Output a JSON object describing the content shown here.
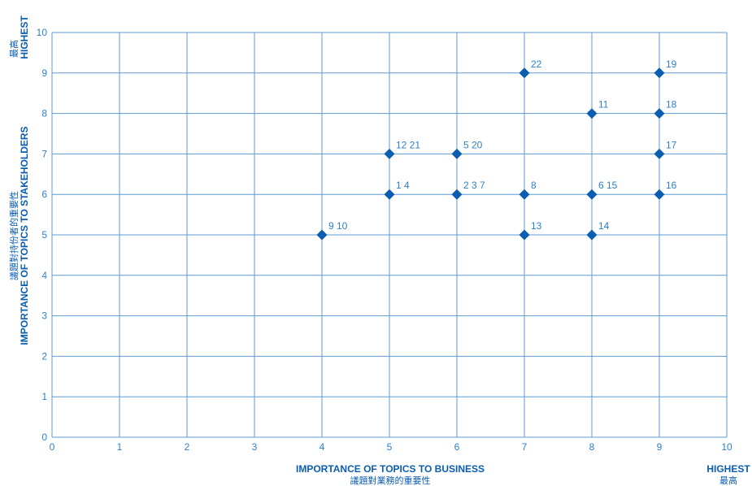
{
  "chart_data": {
    "type": "scatter",
    "x_axis": {
      "label": "IMPORTANCE OF TOPICS TO BUSINESS",
      "label_cjk": "議題對業務的重要性",
      "range": [
        0,
        10
      ],
      "ticks": [
        "0",
        "1",
        "2",
        "3",
        "4",
        "5",
        "6",
        "7",
        "8",
        "9",
        "10"
      ],
      "end_label": "HIGHEST",
      "end_label_cjk": "最高"
    },
    "y_axis": {
      "label": "IMPORTANCE OF TOPICS TO STAKEHOLDERS",
      "label_cjk": "議題對持份者的重要性",
      "range": [
        0,
        10
      ],
      "ticks": [
        "0",
        "1",
        "2",
        "3",
        "4",
        "5",
        "6",
        "7",
        "8",
        "9",
        "10"
      ],
      "end_label": "HIGHEST",
      "end_label_cjk": "最高"
    },
    "grid": true,
    "colors": {
      "marker": "#0a5db1",
      "grid": "#5c9bd6",
      "text": "#2f80c9",
      "title": "#0a5db1"
    },
    "points": [
      {
        "x": 4,
        "y": 5,
        "label": "9 10"
      },
      {
        "x": 5,
        "y": 6,
        "label": "1 4"
      },
      {
        "x": 5,
        "y": 7,
        "label": "12 21"
      },
      {
        "x": 6,
        "y": 6,
        "label": "2 3 7"
      },
      {
        "x": 6,
        "y": 7,
        "label": "5 20"
      },
      {
        "x": 7,
        "y": 5,
        "label": "13"
      },
      {
        "x": 7,
        "y": 6,
        "label": "8"
      },
      {
        "x": 7,
        "y": 9,
        "label": "22"
      },
      {
        "x": 8,
        "y": 5,
        "label": "14"
      },
      {
        "x": 8,
        "y": 6,
        "label": "6 15"
      },
      {
        "x": 8,
        "y": 8,
        "label": "11"
      },
      {
        "x": 9,
        "y": 6,
        "label": "16"
      },
      {
        "x": 9,
        "y": 7,
        "label": "17"
      },
      {
        "x": 9,
        "y": 8,
        "label": "18"
      },
      {
        "x": 9,
        "y": 9,
        "label": "19"
      }
    ]
  }
}
